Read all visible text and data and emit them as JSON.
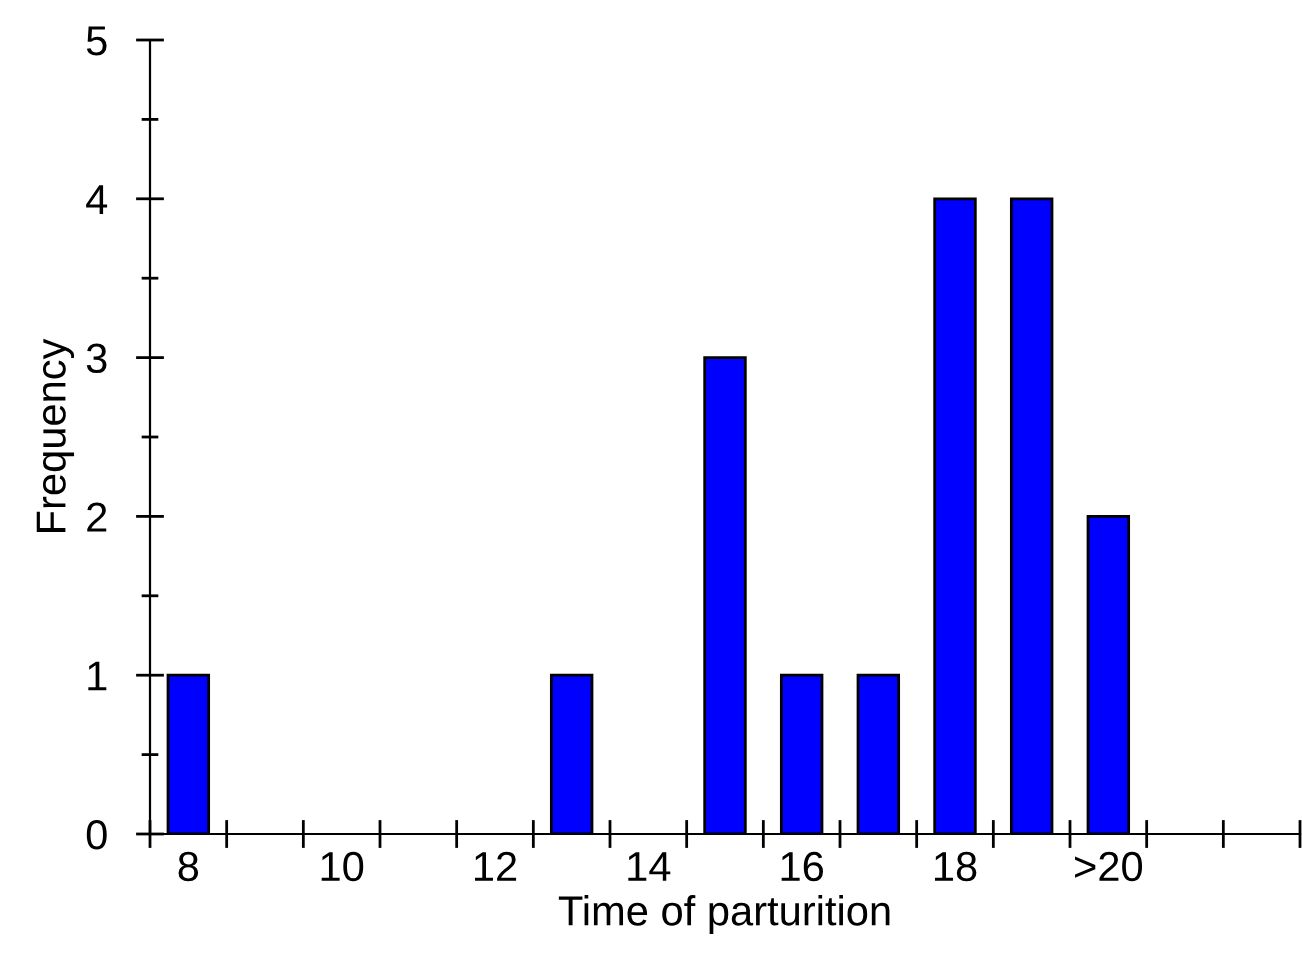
{
  "chart_data": {
    "type": "bar",
    "xlabel": "Time of parturition",
    "ylabel": "Frequency",
    "x": [
      8,
      9,
      10,
      11,
      12,
      13,
      14,
      15,
      16,
      17,
      18,
      19,
      20
    ],
    "values": [
      1,
      0,
      0,
      0,
      0,
      1,
      0,
      3,
      1,
      1,
      4,
      4,
      2
    ],
    "color": "#0000ff",
    "xlim": [
      7.5,
      22.5
    ],
    "xticks": [
      {
        "value": 7.5,
        "label": null
      },
      {
        "value": 8,
        "label": "8"
      },
      {
        "value": 8.5,
        "label": null
      },
      {
        "value": 9.5,
        "label": null
      },
      {
        "value": 10,
        "label": "10"
      },
      {
        "value": 10.5,
        "label": null
      },
      {
        "value": 11.5,
        "label": null
      },
      {
        "value": 12,
        "label": "12"
      },
      {
        "value": 12.5,
        "label": null
      },
      {
        "value": 13.5,
        "label": null
      },
      {
        "value": 14,
        "label": "14"
      },
      {
        "value": 14.5,
        "label": null
      },
      {
        "value": 15.5,
        "label": null
      },
      {
        "value": 16,
        "label": "16"
      },
      {
        "value": 16.5,
        "label": null
      },
      {
        "value": 17.5,
        "label": null
      },
      {
        "value": 18,
        "label": "18"
      },
      {
        "value": 18.5,
        "label": null
      },
      {
        "value": 19.5,
        "label": null
      },
      {
        "value": 20,
        "label": ">20"
      },
      {
        "value": 20.5,
        "label": null
      },
      {
        "value": 21.5,
        "label": null
      },
      {
        "value": 22.5,
        "label": null
      }
    ],
    "ylim": [
      0,
      5
    ],
    "yticks": [
      0,
      {
        "value": 0.5,
        "label": null
      },
      1,
      {
        "value": 1.5,
        "label": null
      },
      2,
      {
        "value": 2.5,
        "label": null
      },
      3,
      {
        "value": 3.5,
        "label": null
      },
      4,
      {
        "value": 4.5,
        "label": null
      },
      5
    ],
    "grid": false,
    "legend": false
  }
}
